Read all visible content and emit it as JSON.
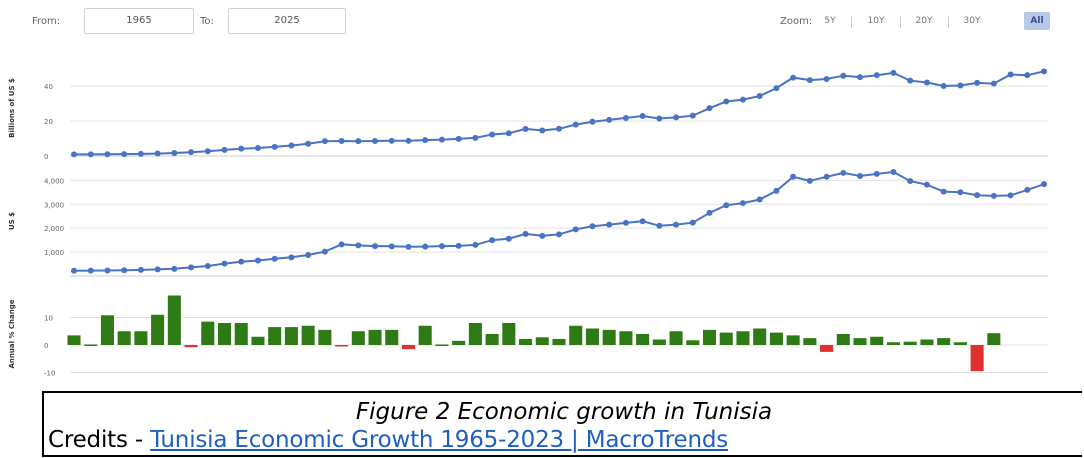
{
  "range": {
    "from_label": "From:",
    "from_value": "1965",
    "to_label": "To:",
    "to_value": "2025"
  },
  "zoom": {
    "label": "Zoom:",
    "options": [
      "5Y",
      "10Y",
      "20Y",
      "30Y",
      "All"
    ],
    "active": "All"
  },
  "caption": {
    "title": "Figure 2 Economic growth in Tunisia",
    "credits_prefix": "Credits - ",
    "credits_link": "Tunisia Economic Growth 1965-2023 | MacroTrends"
  },
  "colors": {
    "line": "#4a73c4",
    "bar_positive": "#2e7a14",
    "bar_negative": "#e03030",
    "grid": "#e2e2e2"
  },
  "chart_data": [
    {
      "type": "line",
      "ylabel": "Billions of US $",
      "yticks": [
        "0",
        "20",
        "40"
      ],
      "ylim": [
        0,
        55
      ],
      "x": [
        1965,
        1966,
        1967,
        1968,
        1969,
        1970,
        1971,
        1972,
        1973,
        1974,
        1975,
        1976,
        1977,
        1978,
        1979,
        1980,
        1981,
        1982,
        1983,
        1984,
        1985,
        1986,
        1987,
        1988,
        1989,
        1990,
        1991,
        1992,
        1993,
        1994,
        1995,
        1996,
        1997,
        1998,
        1999,
        2000,
        2001,
        2002,
        2003,
        2004,
        2005,
        2006,
        2007,
        2008,
        2009,
        2010,
        2011,
        2012,
        2013,
        2014,
        2015,
        2016,
        2017,
        2018,
        2019,
        2020,
        2021,
        2022,
        2023
      ],
      "values": [
        0.9,
        0.9,
        1.0,
        1.1,
        1.2,
        1.4,
        1.7,
        2.2,
        2.7,
        3.5,
        4.2,
        4.6,
        5.2,
        6.0,
        7.0,
        8.5,
        8.6,
        8.5,
        8.6,
        8.7,
        8.7,
        9.1,
        9.4,
        9.8,
        10.4,
        12.3,
        13.0,
        15.5,
        14.6,
        15.6,
        18.0,
        19.6,
        20.7,
        21.8,
        22.9,
        21.5,
        22.1,
        23.1,
        27.4,
        31.2,
        32.3,
        34.4,
        38.9,
        44.9,
        43.5,
        44.1,
        46.0,
        45.2,
        46.3,
        47.6,
        43.2,
        42.1,
        40.1,
        40.4,
        41.9,
        41.5,
        46.7,
        46.3,
        48.5
      ],
      "grid": true
    },
    {
      "type": "line",
      "ylabel": "US $",
      "yticks": [
        "1,000",
        "2,000",
        "3,000",
        "4,000"
      ],
      "ylim": [
        0,
        4600
      ],
      "x": [
        1965,
        1966,
        1967,
        1968,
        1969,
        1970,
        1971,
        1972,
        1973,
        1974,
        1975,
        1976,
        1977,
        1978,
        1979,
        1980,
        1981,
        1982,
        1983,
        1984,
        1985,
        1986,
        1987,
        1988,
        1989,
        1990,
        1991,
        1992,
        1993,
        1994,
        1995,
        1996,
        1997,
        1998,
        1999,
        2000,
        2001,
        2002,
        2003,
        2004,
        2005,
        2006,
        2007,
        2008,
        2009,
        2010,
        2011,
        2012,
        2013,
        2014,
        2015,
        2016,
        2017,
        2018,
        2019,
        2020,
        2021,
        2022,
        2023
      ],
      "values": [
        220,
        225,
        230,
        240,
        255,
        275,
        300,
        360,
        420,
        520,
        600,
        650,
        720,
        780,
        880,
        1020,
        1320,
        1280,
        1250,
        1240,
        1220,
        1230,
        1250,
        1260,
        1300,
        1500,
        1560,
        1760,
        1680,
        1740,
        1950,
        2080,
        2150,
        2220,
        2290,
        2100,
        2150,
        2230,
        2640,
        2960,
        3050,
        3200,
        3560,
        4150,
        3980,
        4150,
        4310,
        4180,
        4270,
        4350,
        3970,
        3820,
        3530,
        3500,
        3380,
        3350,
        3370,
        3600,
        3840
      ],
      "grid": true
    },
    {
      "type": "bar",
      "ylabel": "Annual % Change",
      "yticks": [
        "-10",
        "0",
        "10"
      ],
      "ylim": [
        -12,
        20
      ],
      "x": [
        1965,
        1966,
        1967,
        1968,
        1969,
        1970,
        1971,
        1972,
        1973,
        1974,
        1975,
        1976,
        1977,
        1978,
        1979,
        1980,
        1981,
        1982,
        1983,
        1984,
        1985,
        1986,
        1987,
        1988,
        1989,
        1990,
        1991,
        1992,
        1993,
        1994,
        1995,
        1996,
        1997,
        1998,
        1999,
        2000,
        2001,
        2002,
        2003,
        2004,
        2005,
        2006,
        2007,
        2008,
        2009,
        2010,
        2011,
        2012,
        2013,
        2014,
        2015,
        2016,
        2017,
        2018,
        2019,
        2020,
        2021,
        2022,
        2023
      ],
      "values": [
        3.5,
        0.2,
        10.8,
        5.0,
        5.0,
        11.0,
        18.0,
        -0.8,
        8.5,
        8.0,
        8.0,
        3.0,
        6.5,
        6.5,
        7.0,
        5.5,
        -0.5,
        5.0,
        5.5,
        5.5,
        -1.5,
        7.0,
        0.2,
        1.5,
        8.0,
        4.0,
        8.0,
        2.2,
        2.8,
        2.2,
        7.0,
        6.0,
        5.5,
        5.0,
        4.0,
        2.0,
        5.0,
        1.7,
        5.5,
        4.5,
        5.0,
        6.0,
        4.5,
        3.5,
        2.5,
        -2.5,
        4.0,
        2.5,
        3.0,
        1.0,
        1.2,
        2.0,
        2.5,
        1.0,
        -9.5,
        4.3,
        0.0,
        0.0,
        0.0
      ],
      "grid": true
    }
  ]
}
